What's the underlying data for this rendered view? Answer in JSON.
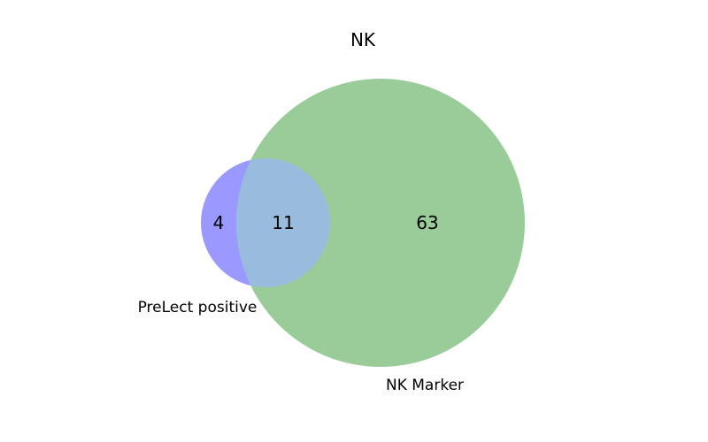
{
  "title": "NK",
  "sets": [
    {
      "name": "PreLect positive",
      "color": "#9999ff"
    },
    {
      "name": "NK Marker",
      "color": "#99cc99"
    }
  ],
  "overlap_color": "#99bbdd",
  "counts": {
    "only_prelect": "4",
    "both": "11",
    "only_nk_marker": "63"
  }
}
